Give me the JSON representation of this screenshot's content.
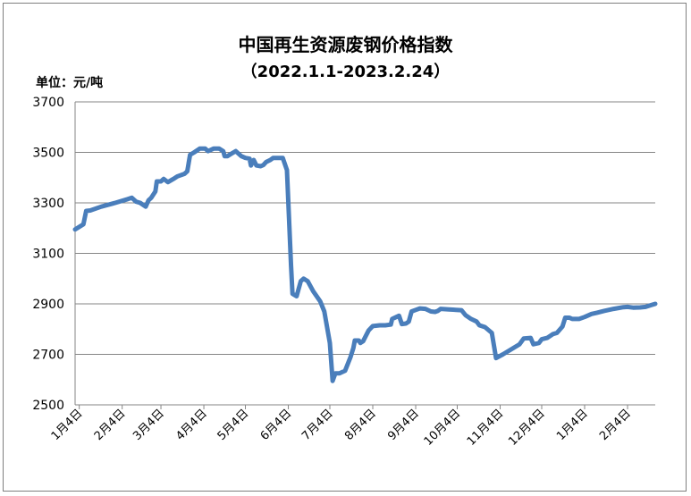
{
  "chart_data": {
    "type": "line",
    "title": "中国再生资源废钢价格指数",
    "subtitle": "（2022.1.1-2023.2.24）",
    "unit_label": "单位：元/吨",
    "ylim": [
      2500,
      3700
    ],
    "yticks": [
      2500,
      2700,
      2900,
      3100,
      3300,
      3500,
      3700
    ],
    "xlim": [
      "2022-01-01",
      "2023-02-24"
    ],
    "xticks": [
      {
        "date": "2022-01-04",
        "label": "1月4日"
      },
      {
        "date": "2022-02-04",
        "label": "2月4日"
      },
      {
        "date": "2022-03-04",
        "label": "3月4日"
      },
      {
        "date": "2022-04-04",
        "label": "4月4日"
      },
      {
        "date": "2022-05-04",
        "label": "5月4日"
      },
      {
        "date": "2022-06-04",
        "label": "6月4日"
      },
      {
        "date": "2022-07-04",
        "label": "7月4日"
      },
      {
        "date": "2022-08-04",
        "label": "8月4日"
      },
      {
        "date": "2022-09-04",
        "label": "9月4日"
      },
      {
        "date": "2022-10-04",
        "label": "10月4日"
      },
      {
        "date": "2022-11-04",
        "label": "11月4日"
      },
      {
        "date": "2022-12-04",
        "label": "12月4日"
      },
      {
        "date": "2023-01-04",
        "label": "1月4日"
      },
      {
        "date": "2023-02-04",
        "label": "2月4日"
      }
    ],
    "grid": true,
    "line_color": "#4a7ebb",
    "series": [
      {
        "values": [
          [
            "2022-01-01",
            3195
          ],
          [
            "2022-01-07",
            3215
          ],
          [
            "2022-01-09",
            3268
          ],
          [
            "2022-01-12",
            3270
          ],
          [
            "2022-01-20",
            3285
          ],
          [
            "2022-01-30",
            3300
          ],
          [
            "2022-02-08",
            3315
          ],
          [
            "2022-02-11",
            3320
          ],
          [
            "2022-02-14",
            3305
          ],
          [
            "2022-02-17",
            3300
          ],
          [
            "2022-02-21",
            3285
          ],
          [
            "2022-02-23",
            3310
          ],
          [
            "2022-02-25",
            3320
          ],
          [
            "2022-02-28",
            3345
          ],
          [
            "2022-03-01",
            3385
          ],
          [
            "2022-03-04",
            3385
          ],
          [
            "2022-03-06",
            3395
          ],
          [
            "2022-03-09",
            3382
          ],
          [
            "2022-03-13",
            3395
          ],
          [
            "2022-03-16",
            3405
          ],
          [
            "2022-03-21",
            3415
          ],
          [
            "2022-03-23",
            3425
          ],
          [
            "2022-03-25",
            3490
          ],
          [
            "2022-03-28",
            3500
          ],
          [
            "2022-04-01",
            3515
          ],
          [
            "2022-04-05",
            3515
          ],
          [
            "2022-04-07",
            3505
          ],
          [
            "2022-04-11",
            3515
          ],
          [
            "2022-04-15",
            3515
          ],
          [
            "2022-04-18",
            3505
          ],
          [
            "2022-04-19",
            3485
          ],
          [
            "2022-04-21",
            3485
          ],
          [
            "2022-04-24",
            3495
          ],
          [
            "2022-04-27",
            3505
          ],
          [
            "2022-05-01",
            3485
          ],
          [
            "2022-05-04",
            3478
          ],
          [
            "2022-05-07",
            3475
          ],
          [
            "2022-05-08",
            3448
          ],
          [
            "2022-05-10",
            3470
          ],
          [
            "2022-05-12",
            3448
          ],
          [
            "2022-05-15",
            3445
          ],
          [
            "2022-05-17",
            3450
          ],
          [
            "2022-05-19",
            3462
          ],
          [
            "2022-05-22",
            3470
          ],
          [
            "2022-05-24",
            3478
          ],
          [
            "2022-05-28",
            3478
          ],
          [
            "2022-05-31",
            3478
          ],
          [
            "2022-06-03",
            3430
          ],
          [
            "2022-06-06",
            3050
          ],
          [
            "2022-06-07",
            2940
          ],
          [
            "2022-06-10",
            2930
          ],
          [
            "2022-06-13",
            2990
          ],
          [
            "2022-06-15",
            3000
          ],
          [
            "2022-06-18",
            2990
          ],
          [
            "2022-06-22",
            2950
          ],
          [
            "2022-06-27",
            2910
          ],
          [
            "2022-06-30",
            2870
          ],
          [
            "2022-07-04",
            2745
          ],
          [
            "2022-07-06",
            2595
          ],
          [
            "2022-07-08",
            2625
          ],
          [
            "2022-07-11",
            2625
          ],
          [
            "2022-07-15",
            2635
          ],
          [
            "2022-07-19",
            2690
          ],
          [
            "2022-07-21",
            2725
          ],
          [
            "2022-07-22",
            2755
          ],
          [
            "2022-07-25",
            2755
          ],
          [
            "2022-07-26",
            2745
          ],
          [
            "2022-07-28",
            2752
          ],
          [
            "2022-08-01",
            2795
          ],
          [
            "2022-08-04",
            2812
          ],
          [
            "2022-08-09",
            2815
          ],
          [
            "2022-08-13",
            2815
          ],
          [
            "2022-08-17",
            2818
          ],
          [
            "2022-08-18",
            2840
          ],
          [
            "2022-08-21",
            2848
          ],
          [
            "2022-08-23",
            2853
          ],
          [
            "2022-08-25",
            2820
          ],
          [
            "2022-08-28",
            2822
          ],
          [
            "2022-08-30",
            2830
          ],
          [
            "2022-09-01",
            2870
          ],
          [
            "2022-09-04",
            2876
          ],
          [
            "2022-09-07",
            2882
          ],
          [
            "2022-09-11",
            2880
          ],
          [
            "2022-09-15",
            2870
          ],
          [
            "2022-09-18",
            2868
          ],
          [
            "2022-09-20",
            2872
          ],
          [
            "2022-09-22",
            2880
          ],
          [
            "2022-09-28",
            2878
          ],
          [
            "2022-10-07",
            2875
          ],
          [
            "2022-10-10",
            2855
          ],
          [
            "2022-10-14",
            2840
          ],
          [
            "2022-10-18",
            2830
          ],
          [
            "2022-10-20",
            2815
          ],
          [
            "2022-10-24",
            2808
          ],
          [
            "2022-10-29",
            2785
          ],
          [
            "2022-11-01",
            2685
          ],
          [
            "2022-11-06",
            2700
          ],
          [
            "2022-11-12",
            2720
          ],
          [
            "2022-11-18",
            2740
          ],
          [
            "2022-11-21",
            2763
          ],
          [
            "2022-11-26",
            2765
          ],
          [
            "2022-11-28",
            2740
          ],
          [
            "2022-12-02",
            2745
          ],
          [
            "2022-12-04",
            2760
          ],
          [
            "2022-12-08",
            2765
          ],
          [
            "2022-12-12",
            2780
          ],
          [
            "2022-12-15",
            2785
          ],
          [
            "2022-12-19",
            2810
          ],
          [
            "2022-12-21",
            2845
          ],
          [
            "2022-12-24",
            2845
          ],
          [
            "2022-12-26",
            2840
          ],
          [
            "2022-12-31",
            2840
          ],
          [
            "2023-01-04",
            2848
          ],
          [
            "2023-01-09",
            2860
          ],
          [
            "2023-01-13",
            2865
          ],
          [
            "2023-01-18",
            2872
          ],
          [
            "2023-01-25",
            2880
          ],
          [
            "2023-02-01",
            2887
          ],
          [
            "2023-02-04",
            2888
          ],
          [
            "2023-02-08",
            2885
          ],
          [
            "2023-02-13",
            2886
          ],
          [
            "2023-02-17",
            2888
          ],
          [
            "2023-02-21",
            2895
          ],
          [
            "2023-02-24",
            2900
          ]
        ]
      }
    ]
  }
}
